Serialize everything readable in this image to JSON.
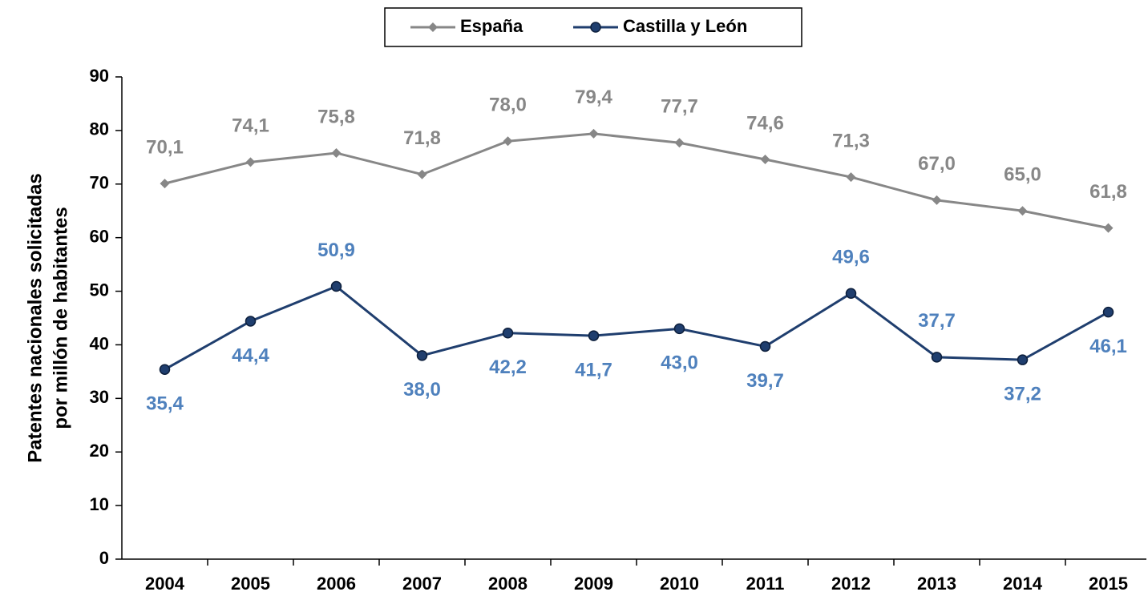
{
  "chart_data": {
    "type": "line",
    "ylabel": [
      "Patentes nacionales solicitadas",
      "por millón de habitantes"
    ],
    "categories": [
      "2004",
      "2005",
      "2006",
      "2007",
      "2008",
      "2009",
      "2010",
      "2011",
      "2012",
      "2013",
      "2014",
      "2015"
    ],
    "series": [
      {
        "name": "España",
        "color": "#878787",
        "marker": "diamond",
        "values": [
          70.1,
          74.1,
          75.8,
          71.8,
          78.0,
          79.4,
          77.7,
          74.6,
          71.3,
          67.0,
          65.0,
          61.8
        ],
        "value_labels": [
          "70,1",
          "74,1",
          "75,8",
          "71,8",
          "78,0",
          "79,4",
          "77,7",
          "74,6",
          "71,3",
          "67,0",
          "65,0",
          "61,8"
        ],
        "label_color": "#878787"
      },
      {
        "name": "Castilla y León",
        "color": "#1f3e6e",
        "marker": "circle",
        "values": [
          35.4,
          44.4,
          50.9,
          38.0,
          42.2,
          41.7,
          43.0,
          39.7,
          49.6,
          37.7,
          37.2,
          46.1
        ],
        "value_labels": [
          "35,4",
          "44,4",
          "50,9",
          "38,0",
          "42,2",
          "41,7",
          "43,0",
          "39,7",
          "49,6",
          "37,7",
          "37,2",
          "46,1"
        ],
        "label_color": "#4f81bd"
      }
    ],
    "ylim": [
      0,
      90
    ],
    "yticks": [
      0,
      10,
      20,
      30,
      40,
      50,
      60,
      70,
      80,
      90
    ],
    "legend": "top"
  }
}
